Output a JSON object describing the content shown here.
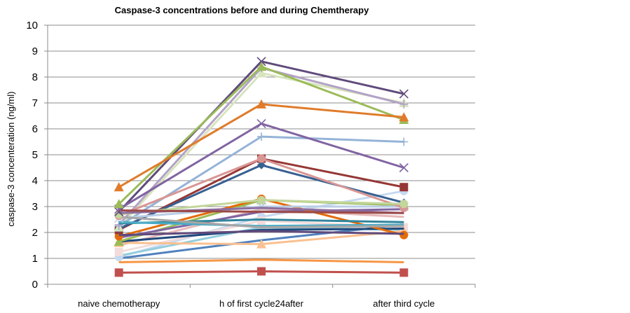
{
  "chart_data": {
    "type": "line",
    "title": "Caspase-3 concentrations before and during Chemtherapy",
    "xlabel": "",
    "ylabel": "caspase-3 concenteration  (ng/ml)",
    "categories": [
      "naive chemotherapy",
      "h of first cycle24after",
      "after third cycle"
    ],
    "ylim": [
      0,
      10
    ],
    "yticks": [
      0,
      1,
      2,
      3,
      4,
      5,
      6,
      7,
      8,
      9,
      10
    ],
    "grid": true,
    "legend": "none",
    "series": [
      {
        "values": [
          0.45,
          0.5,
          0.45
        ],
        "color": "#C0504D",
        "marker": "square"
      },
      {
        "values": [
          0.85,
          0.95,
          0.85
        ],
        "color": "#F79646",
        "marker": "none"
      },
      {
        "values": [
          1.0,
          1.7,
          2.3
        ],
        "color": "#4F81BD",
        "marker": "none"
      },
      {
        "values": [
          1.05,
          2.6,
          3.6
        ],
        "color": "#C6D9F1",
        "marker": "circle"
      },
      {
        "values": [
          1.1,
          2.2,
          2.1
        ],
        "color": "#93CDDD",
        "marker": "none"
      },
      {
        "values": [
          1.25,
          2.45,
          2.2
        ],
        "color": "#F2DCDB",
        "marker": "square"
      },
      {
        "values": [
          1.5,
          2.9,
          2.6
        ],
        "color": "#E6B9B8",
        "marker": "none"
      },
      {
        "values": [
          1.6,
          1.55,
          2.05
        ],
        "color": "#FAC090",
        "marker": "triangle"
      },
      {
        "values": [
          1.65,
          2.1,
          2.15
        ],
        "color": "#1F497D",
        "marker": "none"
      },
      {
        "values": [
          1.65,
          3.25,
          3.05
        ],
        "color": "#9BBB59",
        "marker": "triangle"
      },
      {
        "values": [
          1.8,
          2.8,
          2.9
        ],
        "color": "#8064A2",
        "marker": "none"
      },
      {
        "values": [
          1.85,
          3.3,
          1.9
        ],
        "color": "#E46C0A",
        "marker": "circle"
      },
      {
        "values": [
          1.9,
          2.05,
          1.95
        ],
        "color": "#604A7B",
        "marker": "none"
      },
      {
        "values": [
          2.1,
          4.85,
          3.75
        ],
        "color": "#953735",
        "marker": "square"
      },
      {
        "values": [
          2.15,
          4.6,
          3.15
        ],
        "color": "#376092",
        "marker": "diamond"
      },
      {
        "values": [
          2.2,
          8.15,
          7.0
        ],
        "color": "#D7E4BD",
        "marker": "triangle"
      },
      {
        "values": [
          2.25,
          5.7,
          5.5
        ],
        "color": "#95B3D7",
        "marker": "plus"
      },
      {
        "values": [
          2.3,
          8.35,
          6.95
        ],
        "color": "#B3A2C7",
        "marker": "plus"
      },
      {
        "values": [
          2.35,
          2.5,
          2.4
        ],
        "color": "#31859C",
        "marker": "none"
      },
      {
        "values": [
          2.4,
          2.25,
          2.3
        ],
        "color": "#4BACC6",
        "marker": "none"
      },
      {
        "values": [
          2.55,
          3.0,
          3.0
        ],
        "color": "#B9CDE5",
        "marker": "cross"
      },
      {
        "values": [
          2.6,
          2.2,
          2.25
        ],
        "color": "#A6A6A6",
        "marker": "none"
      },
      {
        "values": [
          2.65,
          4.85,
          2.95
        ],
        "color": "#D99694",
        "marker": "circle"
      },
      {
        "values": [
          2.7,
          3.25,
          3.1
        ],
        "color": "#C3D69B",
        "marker": "circle"
      },
      {
        "values": [
          2.75,
          2.95,
          2.75
        ],
        "color": "#8C6E9E",
        "marker": "none"
      },
      {
        "values": [
          2.8,
          8.6,
          7.35
        ],
        "color": "#604A7B",
        "marker": "cross"
      },
      {
        "values": [
          2.85,
          2.8,
          2.75
        ],
        "color": "#9C4A48",
        "marker": "none"
      },
      {
        "values": [
          2.9,
          6.2,
          4.5
        ],
        "color": "#8064A2",
        "marker": "cross"
      },
      {
        "values": [
          3.1,
          8.4,
          6.35
        ],
        "color": "#9BBB59",
        "marker": "triangle"
      },
      {
        "values": [
          3.75,
          6.95,
          6.45
        ],
        "color": "#E07B2A",
        "marker": "triangle"
      }
    ]
  }
}
